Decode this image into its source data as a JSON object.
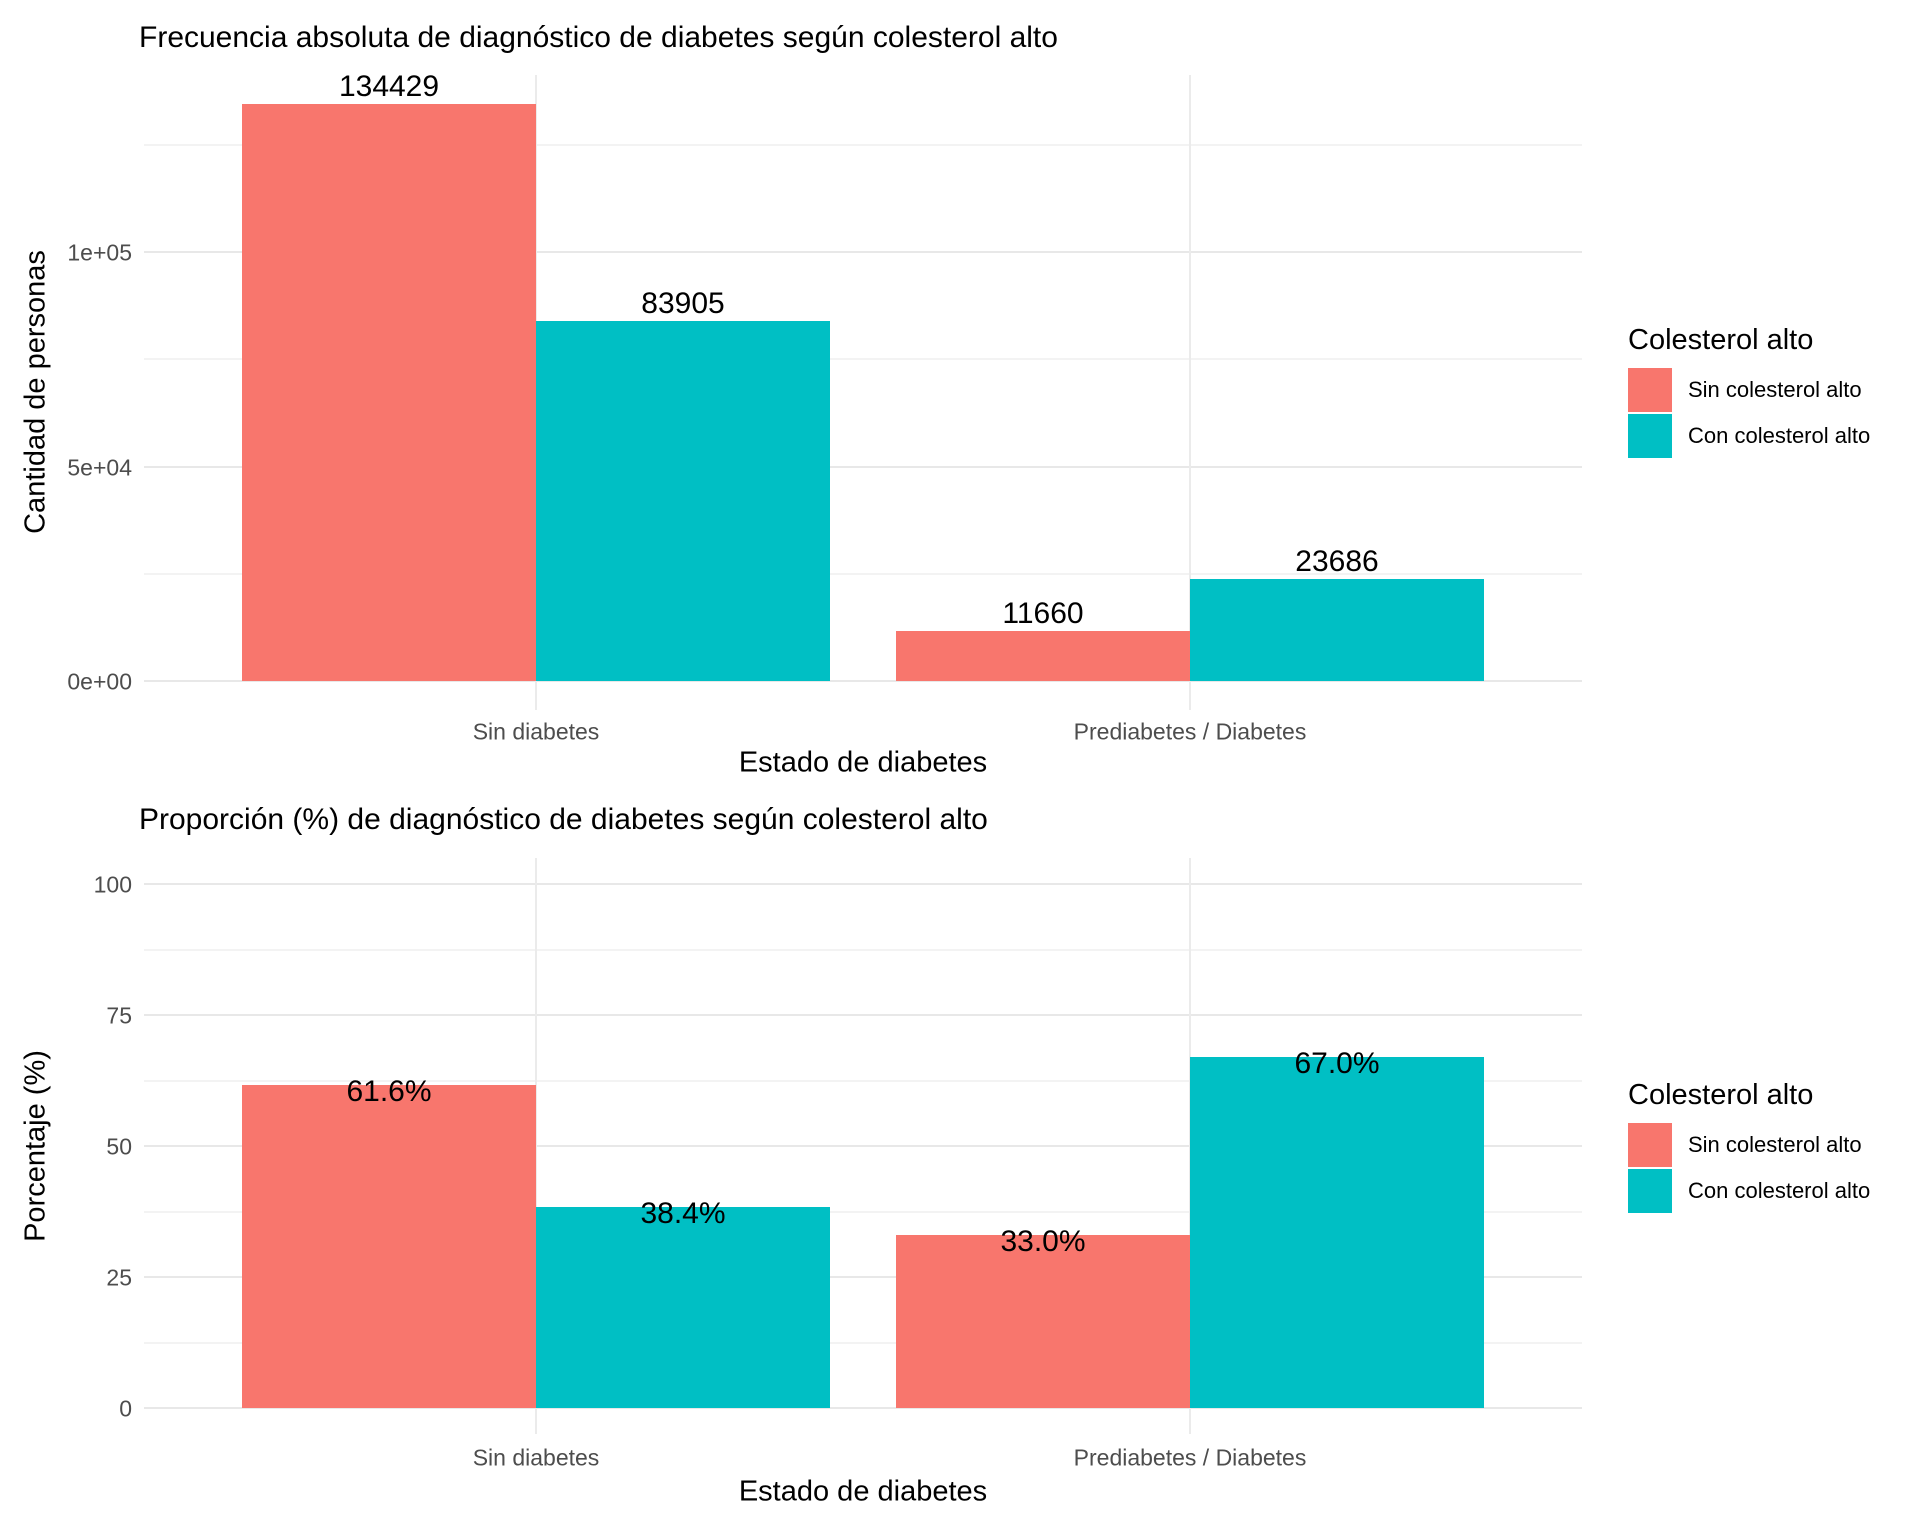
{
  "legend": {
    "title": "Colesterol alto",
    "items": [
      {
        "label": "Sin colesterol alto",
        "color": "#F8766D"
      },
      {
        "label": "Con colesterol alto",
        "color": "#00BFC4"
      }
    ]
  },
  "colors": {
    "sin_colesterol_alto": "#F8766D",
    "con_colesterol_alto": "#00BFC4",
    "grid_major": "#E8E8E8",
    "grid_minor": "#F3F3F3",
    "axis_text": "#4D4D4D",
    "text": "#000000",
    "background": "#FFFFFF"
  },
  "chart_data": [
    {
      "type": "bar",
      "title": "Frecuencia absoluta de diagnóstico de diabetes según colesterol alto",
      "xlabel": "Estado de diabetes",
      "ylabel": "Cantidad de personas",
      "categories": [
        "Sin diabetes",
        "Prediabetes / Diabetes"
      ],
      "series": [
        {
          "name": "Sin colesterol alto",
          "color": "#F8766D",
          "values": [
            134429,
            11660
          ],
          "value_labels": [
            "134429",
            "11660"
          ]
        },
        {
          "name": "Con colesterol alto",
          "color": "#00BFC4",
          "values": [
            83905,
            23686
          ],
          "value_labels": [
            "83905",
            "23686"
          ]
        }
      ],
      "y_ticks": [
        {
          "value": 0,
          "label": "0e+00"
        },
        {
          "value": 50000,
          "label": "5e+04"
        },
        {
          "value": 100000,
          "label": "1e+05"
        }
      ],
      "y_minor_ticks": [
        25000,
        75000,
        125000
      ],
      "ylim": [
        0,
        141150
      ],
      "grid": true,
      "legend_position": "right",
      "value_label_position": "above"
    },
    {
      "type": "bar",
      "title": "Proporción (%) de diagnóstico de diabetes según colesterol alto",
      "xlabel": "Estado de diabetes",
      "ylabel": "Porcentaje (%)",
      "categories": [
        "Sin diabetes",
        "Prediabetes / Diabetes"
      ],
      "series": [
        {
          "name": "Sin colesterol alto",
          "color": "#F8766D",
          "values": [
            61.6,
            33.0
          ],
          "value_labels": [
            "61.6%",
            "33.0%"
          ]
        },
        {
          "name": "Con colesterol alto",
          "color": "#00BFC4",
          "values": [
            38.4,
            67.0
          ],
          "value_labels": [
            "38.4%",
            "67.0%"
          ]
        }
      ],
      "y_ticks": [
        {
          "value": 0,
          "label": "0"
        },
        {
          "value": 25,
          "label": "25"
        },
        {
          "value": 50,
          "label": "50"
        },
        {
          "value": 75,
          "label": "75"
        },
        {
          "value": 100,
          "label": "100"
        }
      ],
      "y_minor_ticks": [
        12.5,
        37.5,
        62.5,
        87.5
      ],
      "ylim": [
        0,
        105
      ],
      "grid": true,
      "legend_position": "right",
      "value_label_position": "top-inside"
    }
  ]
}
